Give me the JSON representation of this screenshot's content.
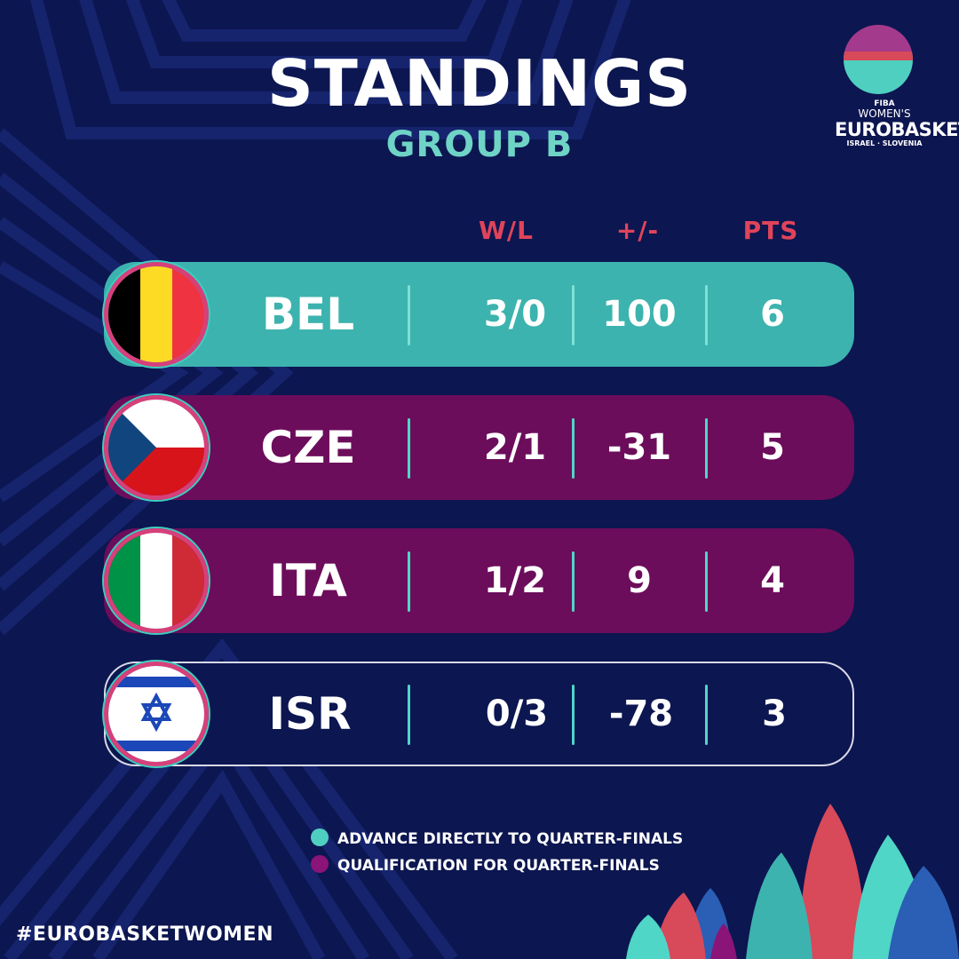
{
  "title": "STANDINGS",
  "subtitle": "GROUP B",
  "logo": {
    "fiba": "FIBA",
    "line1": "WOMEN'S",
    "line2": "EUROBASKET",
    "hosts": "ISRAEL · SLOVENIA"
  },
  "columns": {
    "wl": "W/L",
    "diff": "+/-",
    "pts": "PTS"
  },
  "standings": [
    {
      "team": "BEL",
      "wl": "3/0",
      "diff": "100",
      "pts": "6",
      "status": "advance"
    },
    {
      "team": "CZE",
      "wl": "2/1",
      "diff": "-31",
      "pts": "5",
      "status": "qualify"
    },
    {
      "team": "ITA",
      "wl": "1/2",
      "diff": "9",
      "pts": "4",
      "status": "qualify"
    },
    {
      "team": "ISR",
      "wl": "0/3",
      "diff": "-78",
      "pts": "3",
      "status": "out"
    }
  ],
  "legend": [
    {
      "label": "ADVANCE DIRECTLY TO QUARTER-FINALS",
      "color": "#4fcfc0"
    },
    {
      "label": "QUALIFICATION FOR QUARTER-FINALS",
      "color": "#8a1478"
    }
  ],
  "hashtag": "#EUROBASKETWOMEN",
  "colors": {
    "background": "#0c1650",
    "advance": "#3cb3ae",
    "qualify": "#6c0d5b",
    "accent_red": "#e0445a",
    "accent_teal": "#6fd3c6"
  }
}
